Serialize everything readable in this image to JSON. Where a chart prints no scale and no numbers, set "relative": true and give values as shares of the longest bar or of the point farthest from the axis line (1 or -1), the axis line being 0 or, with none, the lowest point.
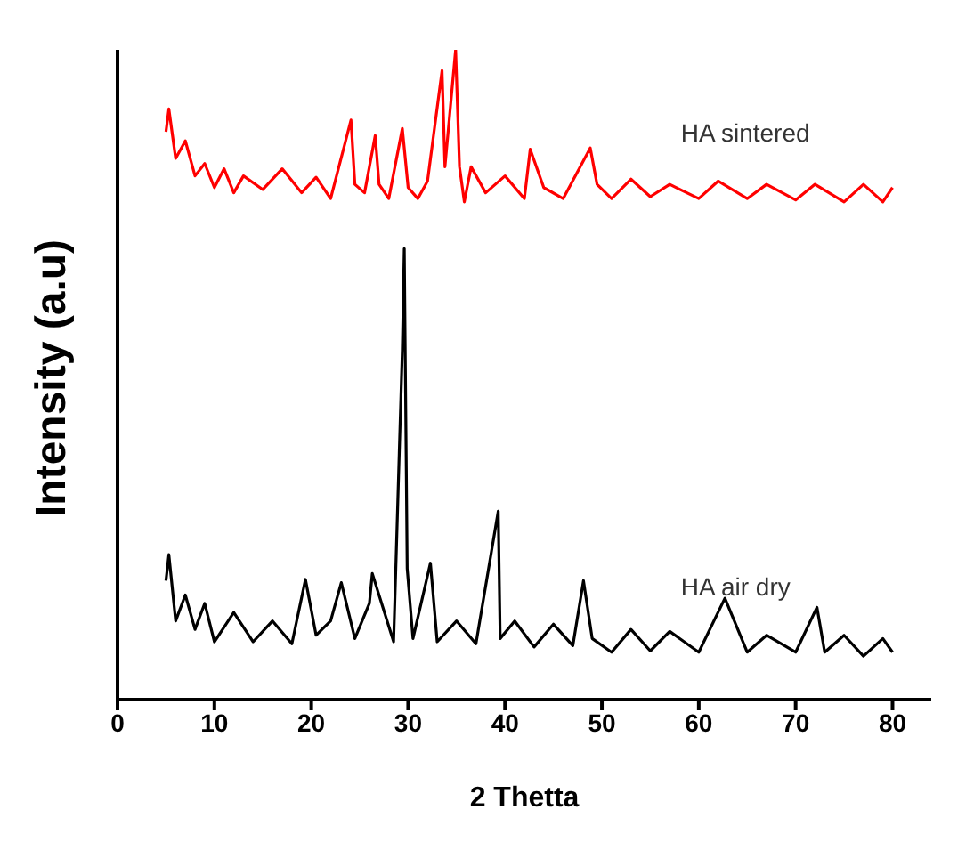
{
  "chart_data": {
    "type": "line",
    "xlabel": "2 Thetta",
    "ylabel": "Intensity (a.u)",
    "relative": true,
    "xlim": [
      0,
      84
    ],
    "xticks": [
      0,
      10,
      20,
      30,
      40,
      50,
      60,
      70,
      80
    ],
    "grid": false,
    "legend": false,
    "marker": "none",
    "line_style": "solid",
    "series": [
      {
        "name": "HA sintered",
        "color": "#ff0000",
        "x": [
          5,
          5.3,
          6,
          7,
          8,
          9,
          10,
          11,
          12,
          13,
          15,
          17,
          19,
          20.5,
          22,
          24.1,
          24.5,
          25.5,
          26.6,
          27,
          28,
          29.4,
          30,
          31,
          32,
          33.5,
          33.8,
          34.9,
          35.3,
          35.8,
          36.5,
          38,
          40,
          42,
          42.6,
          44,
          46,
          48.8,
          49.5,
          51,
          53,
          55,
          57,
          60,
          62,
          65,
          67,
          70,
          72,
          75,
          77,
          79,
          80
        ],
        "values": [
          0.874,
          0.909,
          0.833,
          0.86,
          0.806,
          0.825,
          0.788,
          0.817,
          0.78,
          0.806,
          0.785,
          0.817,
          0.78,
          0.804,
          0.771,
          0.892,
          0.793,
          0.78,
          0.868,
          0.793,
          0.771,
          0.879,
          0.788,
          0.771,
          0.798,
          0.968,
          0.82,
          1,
          0.82,
          0.766,
          0.82,
          0.78,
          0.806,
          0.771,
          0.847,
          0.788,
          0.771,
          0.849,
          0.793,
          0.771,
          0.801,
          0.774,
          0.793,
          0.771,
          0.798,
          0.771,
          0.793,
          0.769,
          0.793,
          0.766,
          0.793,
          0.766,
          0.788
        ]
      },
      {
        "name": "HA air dry",
        "color": "#000000",
        "x": [
          5,
          5.3,
          6,
          7,
          8,
          9,
          10,
          12,
          14,
          16,
          18,
          19.4,
          20.5,
          22,
          23.1,
          24.5,
          26,
          26.3,
          28.5,
          29.4,
          29.6,
          29.9,
          30.5,
          32.3,
          33,
          35,
          37,
          39.3,
          39.5,
          41,
          43,
          45,
          47,
          48.1,
          49,
          51,
          53,
          55,
          57,
          60,
          62.7,
          65,
          67,
          70,
          72.2,
          73,
          75,
          77,
          79,
          80
        ],
        "values": [
          0.183,
          0.223,
          0.121,
          0.161,
          0.108,
          0.148,
          0.089,
          0.134,
          0.089,
          0.121,
          0.086,
          0.185,
          0.099,
          0.121,
          0.18,
          0.094,
          0.148,
          0.194,
          0.089,
          0.538,
          0.694,
          0.202,
          0.094,
          0.21,
          0.089,
          0.121,
          0.086,
          0.29,
          0.094,
          0.121,
          0.081,
          0.116,
          0.083,
          0.183,
          0.094,
          0.073,
          0.108,
          0.075,
          0.105,
          0.073,
          0.156,
          0.073,
          0.099,
          0.073,
          0.142,
          0.073,
          0.099,
          0.067,
          0.094,
          0.073
        ]
      }
    ]
  }
}
